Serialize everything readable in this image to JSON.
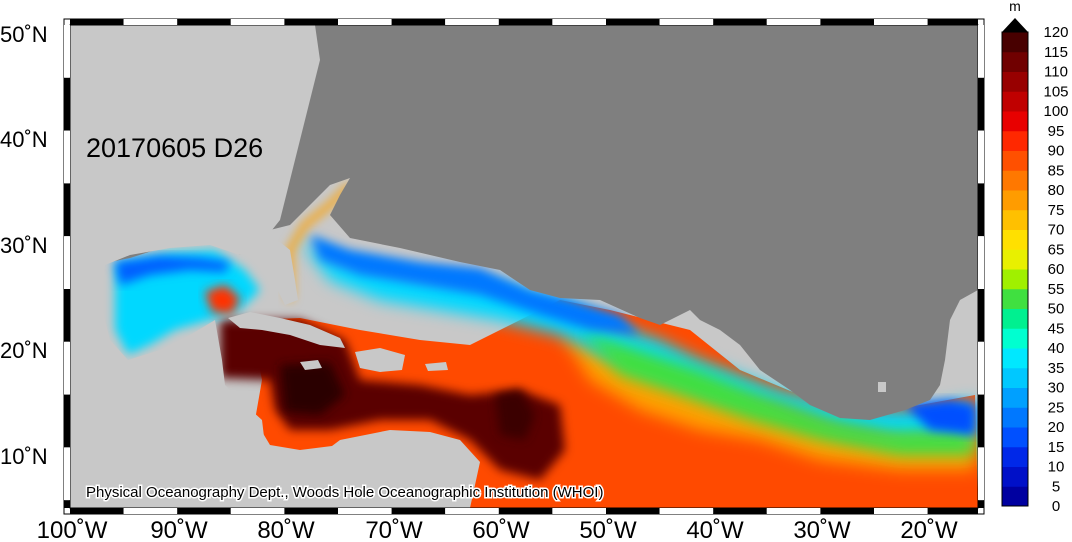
{
  "map": {
    "date_label": "20170605 D26",
    "credit": "Physical Oceanography Dept., Woods Hole Oceanographic Institution (WHOI)",
    "lat_labels": [
      "50˚N",
      "40˚N",
      "30˚N",
      "20˚N",
      "10˚N"
    ],
    "lon_labels": [
      "100˚W",
      "90˚W",
      "80˚W",
      "70˚W",
      "60˚W",
      "50˚W",
      "40˚W",
      "30˚W",
      "20˚W"
    ],
    "land_color": "#7f7f7f",
    "land_outside_color": "#c8c8c8"
  },
  "colorbar": {
    "unit": "m",
    "ticks": [
      "0",
      "5",
      "10",
      "15",
      "20",
      "25",
      "30",
      "35",
      "40",
      "45",
      "50",
      "55",
      "60",
      "65",
      "70",
      "75",
      "80",
      "85",
      "90",
      "95",
      "100",
      "105",
      "110",
      "115",
      "120"
    ],
    "colors": [
      "#0000a0",
      "#0010c8",
      "#0028e8",
      "#0050ff",
      "#0078ff",
      "#00a0ff",
      "#00c8ff",
      "#00e8ff",
      "#00ffd0",
      "#00f090",
      "#40e040",
      "#a0f000",
      "#e8f000",
      "#ffe000",
      "#ffc000",
      "#ff9c00",
      "#ff7800",
      "#ff5000",
      "#ff2800",
      "#e80000",
      "#c00000",
      "#980000",
      "#700000",
      "#480000"
    ]
  }
}
